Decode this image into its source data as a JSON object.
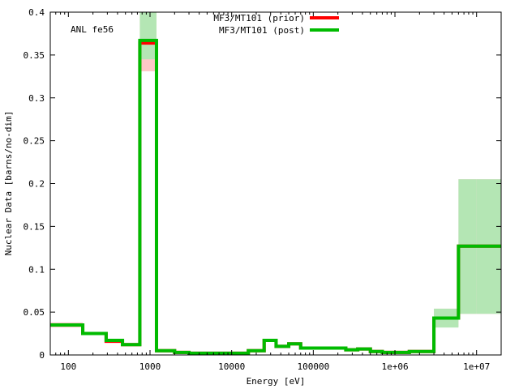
{
  "chart_data": {
    "type": "line",
    "xlabel": "Energy [eV]",
    "ylabel": "Nuclear Data [barns/no-dim]",
    "annotation": "ANL fe56",
    "x_scale": "log",
    "xlim": [
      60,
      20000000
    ],
    "ylim": [
      0,
      0.4
    ],
    "x_ticks": [
      100,
      1000,
      10000,
      100000,
      1000000,
      10000000
    ],
    "x_tick_labels": [
      "100",
      "1000",
      "10000",
      "100000",
      "1e+06",
      "1e+07"
    ],
    "y_ticks": [
      0,
      0.05,
      0.1,
      0.15,
      0.2,
      0.25,
      0.3,
      0.35,
      0.4
    ],
    "y_tick_labels": [
      "0",
      "0.05",
      "0.1",
      "0.15",
      "0.2",
      "0.25",
      "0.3",
      "0.35",
      "0.4"
    ],
    "grid": false,
    "legend_position": "top-center",
    "bin_edges": [
      60,
      150,
      290,
      460,
      750,
      1200,
      2000,
      3000,
      5000,
      10000,
      16000,
      25000,
      35000,
      50000,
      70000,
      100000,
      250000,
      350000,
      500000,
      700000,
      1000000,
      1500000,
      3000000,
      6000000,
      10000000,
      20000000
    ],
    "series": [
      {
        "name": "MF3/MT101 (prior)",
        "color": "#ff0000",
        "values": [
          0.035,
          0.025,
          0.016,
          0.012,
          0.364,
          0.005,
          0.003,
          0.002,
          0.002,
          0.002,
          0.005,
          0.017,
          0.01,
          0.013,
          0.008,
          0.008,
          0.006,
          0.007,
          0.004,
          0.003,
          0.003,
          0.004,
          0.043,
          0.127,
          0.127
        ]
      },
      {
        "name": "MF3/MT101 (post)",
        "color": "#00bb00",
        "values": [
          0.035,
          0.025,
          0.017,
          0.012,
          0.367,
          0.005,
          0.003,
          0.002,
          0.002,
          0.002,
          0.005,
          0.017,
          0.01,
          0.013,
          0.008,
          0.008,
          0.006,
          0.007,
          0.004,
          0.003,
          0.003,
          0.004,
          0.043,
          0.127,
          0.127
        ]
      }
    ],
    "uncertainty_bands": [
      {
        "color": "#ffc8c8",
        "lower": [
          0.032,
          0.024,
          0.015,
          0.011,
          0.331,
          0.004,
          0.003,
          0.002,
          0.002,
          0.002,
          0.005,
          0.016,
          0.009,
          0.012,
          0.007,
          0.007,
          0.005,
          0.006,
          0.004,
          0.003,
          0.003,
          0.004,
          0.033,
          0.048,
          0.048
        ],
        "upper": [
          0.038,
          0.026,
          0.017,
          0.013,
          0.4,
          0.006,
          0.004,
          0.002,
          0.002,
          0.002,
          0.006,
          0.018,
          0.011,
          0.014,
          0.009,
          0.009,
          0.007,
          0.008,
          0.005,
          0.003,
          0.003,
          0.005,
          0.054,
          0.205,
          0.205
        ]
      },
      {
        "color": "#b4e6b4",
        "lower": [
          0.033,
          0.024,
          0.016,
          0.011,
          0.345,
          0.004,
          0.003,
          0.002,
          0.002,
          0.002,
          0.005,
          0.016,
          0.009,
          0.012,
          0.007,
          0.007,
          0.005,
          0.006,
          0.004,
          0.003,
          0.003,
          0.004,
          0.032,
          0.048,
          0.048
        ],
        "upper": [
          0.037,
          0.026,
          0.018,
          0.013,
          0.4,
          0.006,
          0.004,
          0.002,
          0.002,
          0.002,
          0.006,
          0.018,
          0.011,
          0.014,
          0.009,
          0.009,
          0.007,
          0.008,
          0.005,
          0.003,
          0.003,
          0.005,
          0.054,
          0.205,
          0.205
        ]
      }
    ]
  }
}
